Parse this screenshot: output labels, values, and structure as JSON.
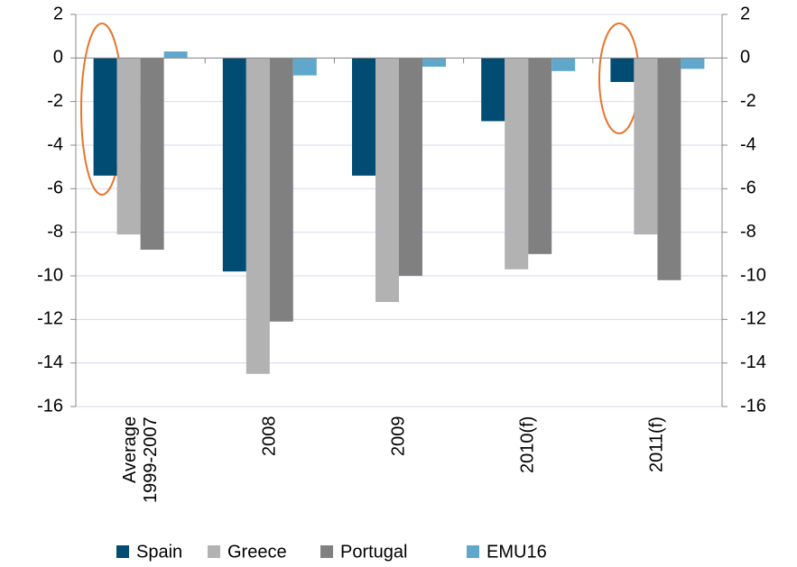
{
  "chart_data": {
    "type": "bar",
    "categories": [
      "Average\n1999-2007",
      "2008",
      "2009",
      "2010(f)",
      "2011(f)"
    ],
    "series": [
      {
        "name": "Spain",
        "color": "#004c72",
        "values": [
          -5.4,
          -9.8,
          -5.4,
          -2.9,
          -1.1
        ]
      },
      {
        "name": "Greece",
        "color": "#b2b2b2",
        "values": [
          -8.1,
          -14.5,
          -11.2,
          -9.7,
          -8.1
        ]
      },
      {
        "name": "Portugal",
        "color": "#808080",
        "values": [
          -8.8,
          -12.1,
          -10.0,
          -9.0,
          -10.2
        ]
      },
      {
        "name": "EMU16",
        "color": "#5fa8cc",
        "values": [
          0.3,
          -0.8,
          -0.4,
          -0.6,
          -0.5
        ]
      }
    ],
    "ylim": [
      -16,
      2
    ],
    "yticks": [
      -16,
      -14,
      -12,
      -10,
      -8,
      -6,
      -4,
      -2,
      0,
      2
    ],
    "y2lim": [
      -16,
      2
    ],
    "y2ticks": [
      -16,
      -14,
      -12,
      -10,
      -8,
      -6,
      -4,
      -2,
      0,
      2
    ],
    "grid": true
  }
}
